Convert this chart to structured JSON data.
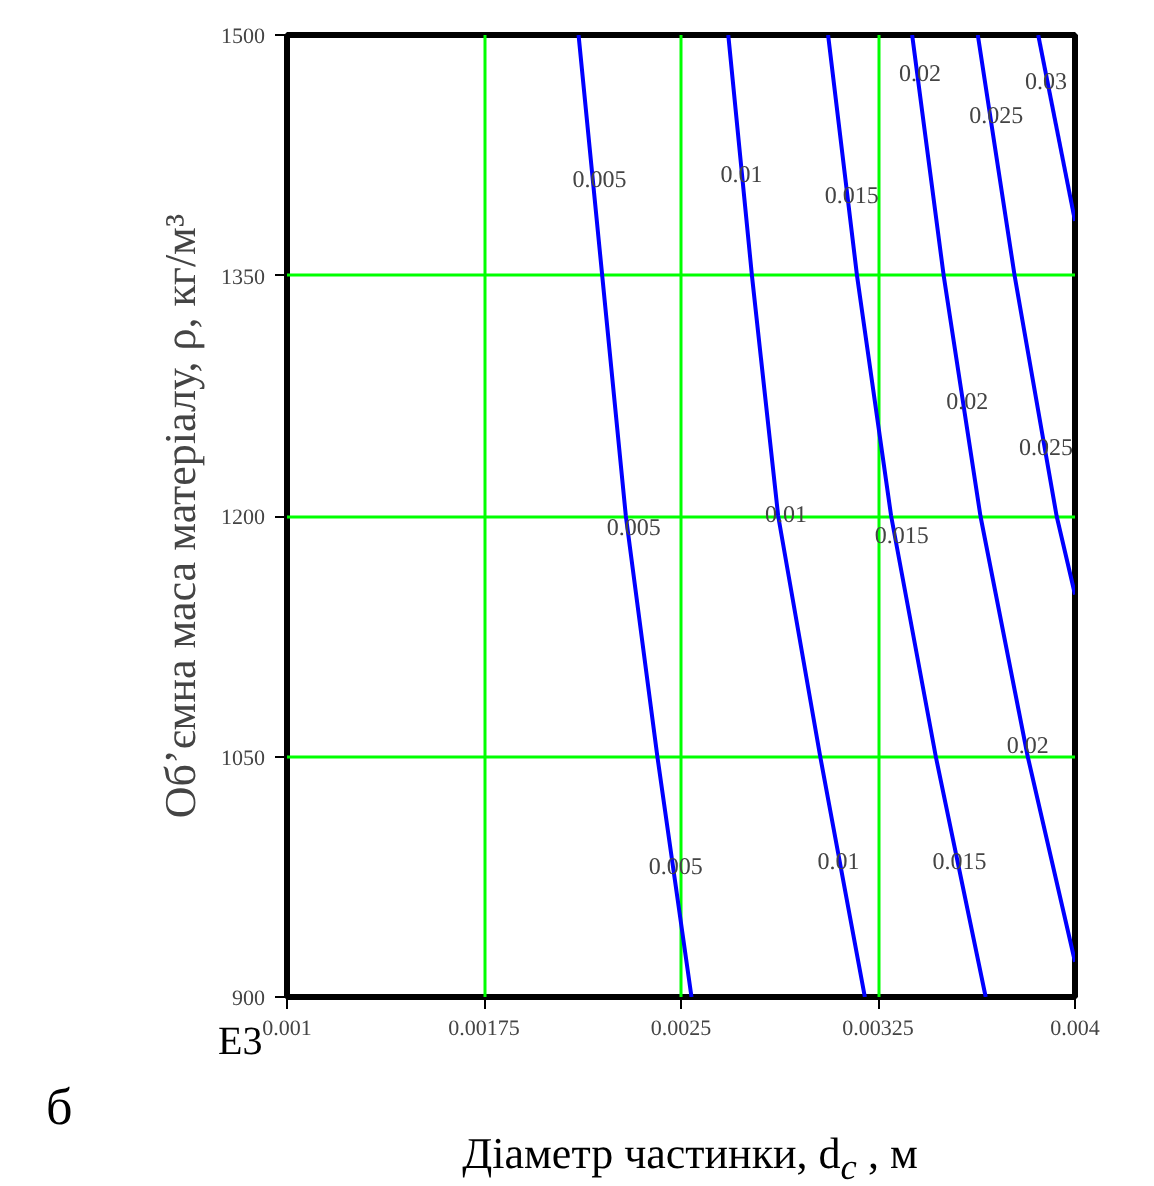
{
  "chart_data": {
    "type": "line",
    "xlabel": "Діаметр частинки, d$_{c}$ , м",
    "ylabel": "Об’ємна маса матеріалу, ρ, кг/м³",
    "xlim": [
      0.001,
      0.004
    ],
    "ylim": [
      900,
      1500
    ],
    "xticks": [
      0.001,
      0.00175,
      0.0025,
      0.00325,
      0.004
    ],
    "yticks": [
      900,
      1050,
      1200,
      1350,
      1500
    ],
    "grid": true,
    "marker": "none",
    "line_style": "solid",
    "series": [
      {
        "color": "#0000ff",
        "x": [
          0.00211,
          0.0022,
          0.00229,
          0.00241,
          0.00254
        ],
        "values": [
          1500,
          1350,
          1200,
          1050,
          900
        ]
      },
      {
        "color": "#0000ff",
        "x": [
          0.00268,
          0.00277,
          0.00287,
          0.00303,
          0.0032
        ],
        "values": [
          1500,
          1350,
          1200,
          1050,
          900
        ]
      },
      {
        "color": "#0000ff",
        "x": [
          0.00306,
          0.00317,
          0.0033,
          0.00347,
          0.00366
        ],
        "values": [
          1500,
          1350,
          1200,
          1050,
          900
        ]
      },
      {
        "color": "#0000ff",
        "x": [
          0.00338,
          0.0035,
          0.00364,
          0.00382,
          0.004
        ],
        "values": [
          1500,
          1350,
          1200,
          1050,
          922
        ]
      },
      {
        "color": "#0000ff",
        "x": [
          0.00363,
          0.00377,
          0.00393,
          0.004
        ],
        "values": [
          1500,
          1350,
          1200,
          1151
        ]
      },
      {
        "color": "#0000ff",
        "x": [
          0.00386,
          0.004
        ],
        "values": [
          1500,
          1384
        ]
      }
    ],
    "annotations": [
      {
        "text": "0.005",
        "x": 0.00219,
        "y": 1410
      },
      {
        "text": "0.01",
        "x": 0.00273,
        "y": 1413
      },
      {
        "text": "0.015",
        "x": 0.00315,
        "y": 1400
      },
      {
        "text": "0.02",
        "x": 0.00341,
        "y": 1476
      },
      {
        "text": "0.025",
        "x": 0.0037,
        "y": 1450
      },
      {
        "text": "0.03",
        "x": 0.00389,
        "y": 1471
      },
      {
        "text": "0.02",
        "x": 0.00359,
        "y": 1272
      },
      {
        "text": "0.025",
        "x": 0.00389,
        "y": 1243
      },
      {
        "text": "0.005",
        "x": 0.00232,
        "y": 1193
      },
      {
        "text": "0.01",
        "x": 0.0029,
        "y": 1201
      },
      {
        "text": "0.015",
        "x": 0.00334,
        "y": 1188
      },
      {
        "text": "0.02",
        "x": 0.00382,
        "y": 1057
      },
      {
        "text": "0.005",
        "x": 0.00248,
        "y": 982
      },
      {
        "text": "0.01",
        "x": 0.0031,
        "y": 985
      },
      {
        "text": "0.015",
        "x": 0.00356,
        "y": 985
      },
      "E3",
      "б"
    ]
  }
}
